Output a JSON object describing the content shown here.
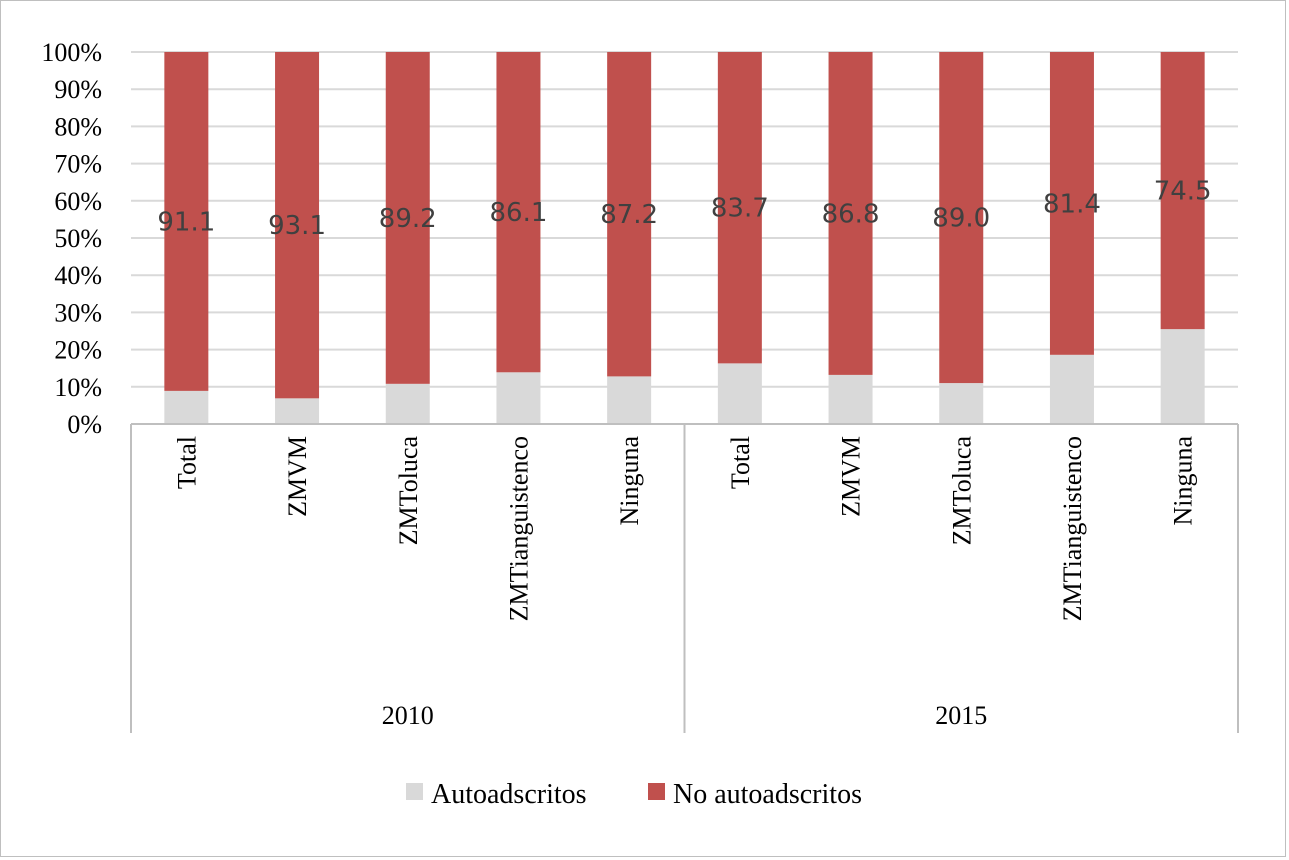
{
  "chart_data": {
    "type": "bar",
    "stacked": true,
    "percent_scale": true,
    "title": "",
    "xlabel": "",
    "ylabel": "",
    "ylim": [
      0,
      100
    ],
    "yticks": [
      "0%",
      "10%",
      "20%",
      "30%",
      "40%",
      "50%",
      "60%",
      "70%",
      "80%",
      "90%",
      "100%"
    ],
    "groups": [
      {
        "label": "2010",
        "categories": [
          "Total",
          "ZMVM",
          "ZMToluca",
          "ZMTianguistenco",
          "Ninguna"
        ]
      },
      {
        "label": "2015",
        "categories": [
          "Total",
          "ZMVM",
          "ZMToluca",
          "ZMTianguistenco",
          "Ninguna"
        ]
      }
    ],
    "series": [
      {
        "name": "Autoadscritos",
        "color": "#d9d9d9",
        "values": [
          8.9,
          6.9,
          10.8,
          13.9,
          12.8,
          16.3,
          13.2,
          11.0,
          18.6,
          25.5
        ]
      },
      {
        "name": "No autoadscritos",
        "color": "#c0504d",
        "values": [
          91.1,
          93.1,
          89.2,
          86.1,
          87.2,
          83.7,
          86.8,
          89.0,
          81.4,
          74.5
        ],
        "data_labels": [
          "91.1",
          "93.1",
          "89.2",
          "86.1",
          "87.2",
          "83.7",
          "86.8",
          "89.0",
          "81.4",
          "74.5"
        ]
      }
    ],
    "grid": true,
    "legend_position": "bottom"
  }
}
